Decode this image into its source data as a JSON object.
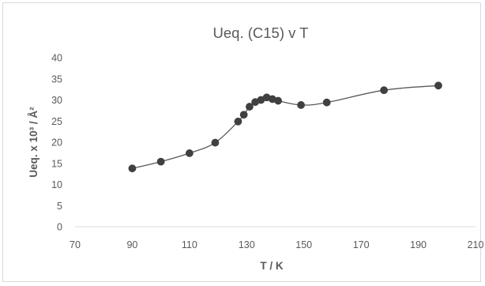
{
  "chart_data": {
    "type": "scatter",
    "title": "Ueq. (C15) v T",
    "xlabel": "T / K",
    "ylabel": "Ueq. x 10³ / Å²",
    "xlim": [
      70,
      210
    ],
    "ylim": [
      0,
      40
    ],
    "xticks": [
      70,
      90,
      110,
      130,
      150,
      170,
      190,
      210
    ],
    "yticks": [
      0,
      5,
      10,
      15,
      20,
      25,
      30,
      35,
      40
    ],
    "smooth_line": true,
    "legend": "none",
    "marker_color": "#404040",
    "line_color": "#595959",
    "axis_color": "#d9d9d9",
    "series": [
      {
        "x": [
          90,
          100,
          110,
          119,
          127,
          129,
          131,
          133,
          135,
          137,
          139,
          141,
          149,
          158,
          178,
          197
        ],
        "y": [
          13.8,
          15.4,
          17.4,
          19.9,
          24.9,
          26.5,
          28.4,
          29.5,
          30.0,
          30.6,
          30.2,
          29.8,
          28.8,
          29.4,
          32.3,
          33.4
        ]
      }
    ]
  }
}
